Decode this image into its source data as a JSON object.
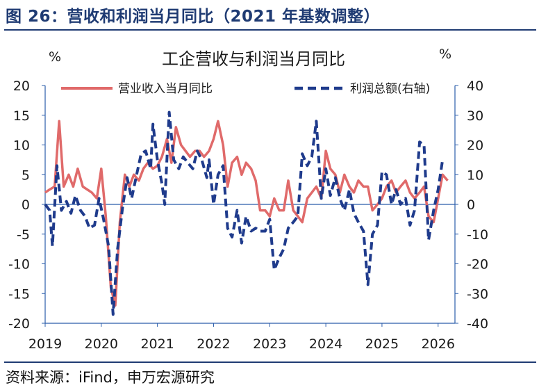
{
  "figure_title": "图 26：营收和利润当月同比（2021 年基数调整）",
  "source_note": "资料来源：iFind，申万宏源研究",
  "colors": {
    "revenue": "#e06a6a",
    "profit": "#1f3b8c",
    "frame": "#2a5caa",
    "title": "#1f3b73"
  },
  "chart_data": {
    "type": "line",
    "title": "工企营收与利润当月同比",
    "left_unit": "%",
    "right_unit": "%",
    "legend_position": "top",
    "x_ticks": [
      "2019",
      "2020",
      "2021",
      "2022",
      "2023",
      "2024",
      "2025",
      "2026"
    ],
    "x_range": [
      2019.0,
      2026.3
    ],
    "left_axis": {
      "range": [
        -20,
        20
      ],
      "ticks": [
        "20",
        "15",
        "10",
        "5",
        "0",
        "-5",
        "-10",
        "-15",
        "-20"
      ]
    },
    "right_axis": {
      "range": [
        -40,
        40
      ],
      "ticks": [
        "40",
        "30",
        "20",
        "10",
        "0",
        "-10",
        "-20",
        "-30",
        "-40"
      ]
    },
    "series": [
      {
        "name": "营业收入当月同比",
        "axis": "left",
        "style": "solid",
        "points": [
          [
            2019.0,
            2
          ],
          [
            2019.08,
            2.5
          ],
          [
            2019.17,
            3
          ],
          [
            2019.25,
            14
          ],
          [
            2019.33,
            3
          ],
          [
            2019.42,
            5
          ],
          [
            2019.5,
            3
          ],
          [
            2019.58,
            6
          ],
          [
            2019.67,
            3
          ],
          [
            2019.75,
            2.5
          ],
          [
            2019.83,
            2
          ],
          [
            2019.92,
            1
          ],
          [
            2020.0,
            6
          ],
          [
            2020.08,
            -2
          ],
          [
            2020.17,
            -14
          ],
          [
            2020.25,
            -17
          ],
          [
            2020.33,
            -3
          ],
          [
            2020.42,
            5
          ],
          [
            2020.5,
            3
          ],
          [
            2020.58,
            5
          ],
          [
            2020.67,
            4
          ],
          [
            2020.75,
            6
          ],
          [
            2020.83,
            7
          ],
          [
            2020.92,
            6
          ],
          [
            2021.0,
            6.5
          ],
          [
            2021.08,
            8
          ],
          [
            2021.17,
            11
          ],
          [
            2021.25,
            7
          ],
          [
            2021.33,
            13
          ],
          [
            2021.42,
            10
          ],
          [
            2021.5,
            9
          ],
          [
            2021.58,
            8
          ],
          [
            2021.67,
            9
          ],
          [
            2021.75,
            9
          ],
          [
            2021.83,
            8
          ],
          [
            2021.92,
            9
          ],
          [
            2022.0,
            11
          ],
          [
            2022.08,
            14
          ],
          [
            2022.17,
            10
          ],
          [
            2022.25,
            3
          ],
          [
            2022.33,
            7
          ],
          [
            2022.42,
            8
          ],
          [
            2022.5,
            5
          ],
          [
            2022.58,
            7
          ],
          [
            2022.67,
            6
          ],
          [
            2022.75,
            4
          ],
          [
            2022.83,
            -1
          ],
          [
            2022.92,
            -1
          ],
          [
            2023.0,
            -2
          ],
          [
            2023.08,
            1
          ],
          [
            2023.17,
            -1
          ],
          [
            2023.25,
            -1
          ],
          [
            2023.33,
            4
          ],
          [
            2023.42,
            -1
          ],
          [
            2023.5,
            -2
          ],
          [
            2023.58,
            -3
          ],
          [
            2023.67,
            1
          ],
          [
            2023.75,
            2
          ],
          [
            2023.83,
            3
          ],
          [
            2023.92,
            1
          ],
          [
            2024.0,
            9
          ],
          [
            2024.08,
            6
          ],
          [
            2024.17,
            5
          ],
          [
            2024.25,
            2
          ],
          [
            2024.33,
            5
          ],
          [
            2024.42,
            3
          ],
          [
            2024.5,
            2
          ],
          [
            2024.58,
            4
          ],
          [
            2024.67,
            3
          ],
          [
            2024.75,
            3
          ],
          [
            2024.83,
            -1
          ],
          [
            2024.92,
            0
          ],
          [
            2025.0,
            1
          ],
          [
            2025.08,
            3
          ],
          [
            2025.17,
            4
          ],
          [
            2025.25,
            2
          ],
          [
            2025.33,
            3
          ],
          [
            2025.42,
            4
          ],
          [
            2025.5,
            2
          ],
          [
            2025.58,
            1
          ],
          [
            2025.67,
            2
          ],
          [
            2025.75,
            3
          ],
          [
            2025.83,
            -2
          ],
          [
            2025.92,
            -3
          ],
          [
            2026.0,
            1
          ],
          [
            2026.08,
            5
          ],
          [
            2026.17,
            4
          ]
        ]
      },
      {
        "name": "利润总额(右轴)",
        "axis": "right",
        "style": "dashed",
        "points": [
          [
            2019.0,
            0
          ],
          [
            2019.08,
            -2
          ],
          [
            2019.13,
            -14
          ],
          [
            2019.21,
            13
          ],
          [
            2019.29,
            -2
          ],
          [
            2019.38,
            1
          ],
          [
            2019.46,
            -3
          ],
          [
            2019.54,
            3
          ],
          [
            2019.63,
            -2
          ],
          [
            2019.71,
            -4
          ],
          [
            2019.79,
            -8
          ],
          [
            2019.88,
            -7
          ],
          [
            2019.96,
            2
          ],
          [
            2020.04,
            -5
          ],
          [
            2020.13,
            -14
          ],
          [
            2020.21,
            -37
          ],
          [
            2020.29,
            -15
          ],
          [
            2020.38,
            -1
          ],
          [
            2020.46,
            9
          ],
          [
            2020.54,
            2
          ],
          [
            2020.63,
            10
          ],
          [
            2020.71,
            17
          ],
          [
            2020.79,
            18
          ],
          [
            2020.88,
            12
          ],
          [
            2020.92,
            27
          ],
          [
            2021.0,
            15
          ],
          [
            2021.08,
            7
          ],
          [
            2021.13,
            0
          ],
          [
            2021.21,
            31
          ],
          [
            2021.29,
            15
          ],
          [
            2021.38,
            12
          ],
          [
            2021.46,
            16
          ],
          [
            2021.54,
            14
          ],
          [
            2021.63,
            12
          ],
          [
            2021.71,
            18
          ],
          [
            2021.79,
            15
          ],
          [
            2021.88,
            9
          ],
          [
            2021.92,
            15
          ],
          [
            2022.0,
            0
          ],
          [
            2022.08,
            10
          ],
          [
            2022.17,
            13
          ],
          [
            2022.25,
            -8
          ],
          [
            2022.33,
            -11
          ],
          [
            2022.42,
            -2
          ],
          [
            2022.5,
            -13
          ],
          [
            2022.58,
            -4
          ],
          [
            2022.67,
            -9
          ],
          [
            2022.75,
            -8
          ],
          [
            2022.83,
            -9
          ],
          [
            2022.92,
            -9
          ],
          [
            2023.0,
            -5
          ],
          [
            2023.08,
            -22
          ],
          [
            2023.17,
            -18
          ],
          [
            2023.25,
            -15
          ],
          [
            2023.33,
            -8
          ],
          [
            2023.42,
            -6
          ],
          [
            2023.5,
            -4
          ],
          [
            2023.58,
            17
          ],
          [
            2023.67,
            13
          ],
          [
            2023.75,
            16
          ],
          [
            2023.83,
            28
          ],
          [
            2023.92,
            2
          ],
          [
            2024.0,
            12
          ],
          [
            2024.08,
            3
          ],
          [
            2024.17,
            9
          ],
          [
            2024.25,
            2
          ],
          [
            2024.33,
            -2
          ],
          [
            2024.42,
            5
          ],
          [
            2024.5,
            -3
          ],
          [
            2024.58,
            -6
          ],
          [
            2024.67,
            -9
          ],
          [
            2024.75,
            -27
          ],
          [
            2024.83,
            -10
          ],
          [
            2024.92,
            -7
          ],
          [
            2025.0,
            11
          ],
          [
            2025.08,
            10
          ],
          [
            2025.17,
            0
          ],
          [
            2025.25,
            5
          ],
          [
            2025.33,
            0
          ],
          [
            2025.42,
            2
          ],
          [
            2025.5,
            -7
          ],
          [
            2025.58,
            -2
          ],
          [
            2025.67,
            21
          ],
          [
            2025.75,
            20
          ],
          [
            2025.83,
            -12
          ],
          [
            2025.92,
            -2
          ],
          [
            2026.0,
            5
          ],
          [
            2026.08,
            15
          ]
        ]
      }
    ]
  }
}
